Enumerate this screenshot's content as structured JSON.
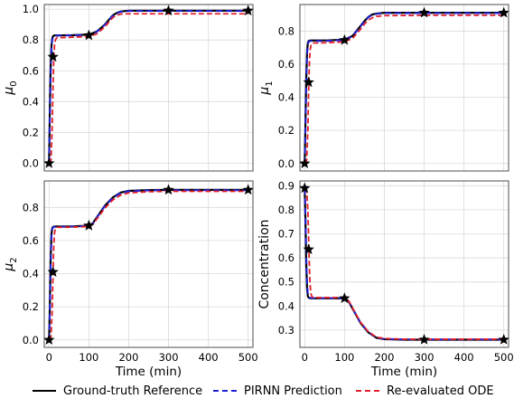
{
  "colors": {
    "ground_truth": "#000000",
    "pirnn": "#1f1fd6",
    "ode": "#e0202a",
    "grid": "#d9d9d9"
  },
  "legend": {
    "ground_truth": "Ground-truth Reference",
    "pirnn": "PIRNN Prediction",
    "ode": "Re-evaluated ODE"
  },
  "chart_data": [
    {
      "type": "line",
      "ylabel": "μ0",
      "xlabel": "",
      "xlim": [
        -12,
        512
      ],
      "ylim": [
        -0.05,
        1.03
      ],
      "yticks": [
        "0.0",
        "0.2",
        "0.4",
        "0.6",
        "0.8",
        "1.0"
      ],
      "ytick_values": [
        0.0,
        0.2,
        0.4,
        0.6,
        0.8,
        1.0
      ],
      "xticks": [
        0,
        100,
        200,
        300,
        400,
        500
      ],
      "show_xtick_labels": false,
      "grid": true,
      "series": [
        {
          "key": "ground_truth",
          "x": [
            0,
            2,
            4,
            6,
            8,
            10,
            12,
            15,
            20,
            30,
            60,
            100,
            120,
            140,
            150,
            160,
            170,
            180,
            200,
            300,
            500
          ],
          "y": [
            0.0,
            0.35,
            0.62,
            0.76,
            0.81,
            0.825,
            0.828,
            0.83,
            0.83,
            0.83,
            0.831,
            0.835,
            0.855,
            0.9,
            0.93,
            0.96,
            0.975,
            0.985,
            0.99,
            0.99,
            0.99
          ]
        },
        {
          "key": "pirnn",
          "x": [
            0,
            2,
            4,
            6,
            8,
            10,
            12,
            15,
            20,
            30,
            60,
            100,
            120,
            140,
            150,
            160,
            170,
            180,
            200,
            300,
            500
          ],
          "y": [
            0.0,
            0.3,
            0.58,
            0.74,
            0.8,
            0.82,
            0.826,
            0.828,
            0.828,
            0.829,
            0.83,
            0.834,
            0.853,
            0.898,
            0.928,
            0.958,
            0.973,
            0.983,
            0.988,
            0.988,
            0.988
          ]
        },
        {
          "key": "ode",
          "x": [
            0,
            5,
            8,
            10,
            12,
            14,
            16,
            18,
            20,
            30,
            60,
            100,
            120,
            140,
            150,
            160,
            170,
            180,
            200,
            300,
            500
          ],
          "y": [
            0.0,
            0.02,
            0.25,
            0.5,
            0.69,
            0.77,
            0.8,
            0.81,
            0.815,
            0.815,
            0.818,
            0.822,
            0.84,
            0.885,
            0.915,
            0.945,
            0.96,
            0.968,
            0.97,
            0.97,
            0.97
          ]
        }
      ],
      "markers": {
        "x": [
          0,
          10,
          100,
          300,
          500
        ],
        "y": [
          0.0,
          0.69,
          0.83,
          0.99,
          0.99
        ]
      }
    },
    {
      "type": "line",
      "ylabel": "μ1",
      "xlabel": "",
      "xlim": [
        -12,
        512
      ],
      "ylim": [
        -0.045,
        0.96
      ],
      "yticks": [
        "0.0",
        "0.2",
        "0.4",
        "0.6",
        "0.8"
      ],
      "ytick_values": [
        0.0,
        0.2,
        0.4,
        0.6,
        0.8
      ],
      "xticks": [
        0,
        100,
        200,
        300,
        400,
        500
      ],
      "show_xtick_labels": false,
      "grid": true,
      "series": [
        {
          "key": "ground_truth",
          "x": [
            0,
            2,
            4,
            6,
            8,
            10,
            12,
            15,
            20,
            30,
            60,
            100,
            120,
            140,
            150,
            160,
            170,
            180,
            200,
            300,
            500
          ],
          "y": [
            0.0,
            0.25,
            0.52,
            0.68,
            0.73,
            0.74,
            0.742,
            0.743,
            0.743,
            0.743,
            0.744,
            0.748,
            0.77,
            0.83,
            0.86,
            0.885,
            0.9,
            0.905,
            0.91,
            0.91,
            0.91
          ]
        },
        {
          "key": "pirnn",
          "x": [
            0,
            2,
            4,
            6,
            8,
            10,
            12,
            15,
            20,
            30,
            60,
            100,
            120,
            140,
            150,
            160,
            170,
            180,
            200,
            300,
            500
          ],
          "y": [
            0.0,
            0.22,
            0.49,
            0.66,
            0.72,
            0.735,
            0.738,
            0.74,
            0.74,
            0.74,
            0.741,
            0.746,
            0.768,
            0.828,
            0.858,
            0.883,
            0.898,
            0.903,
            0.908,
            0.908,
            0.908
          ]
        },
        {
          "key": "ode",
          "x": [
            0,
            5,
            8,
            10,
            12,
            14,
            16,
            18,
            20,
            30,
            60,
            100,
            120,
            140,
            150,
            160,
            170,
            180,
            200,
            300,
            500
          ],
          "y": [
            0.0,
            0.02,
            0.2,
            0.45,
            0.62,
            0.69,
            0.715,
            0.725,
            0.728,
            0.728,
            0.73,
            0.735,
            0.755,
            0.81,
            0.842,
            0.866,
            0.88,
            0.888,
            0.893,
            0.895,
            0.895
          ]
        }
      ],
      "markers": {
        "x": [
          0,
          10,
          100,
          300,
          500
        ],
        "y": [
          0.0,
          0.49,
          0.745,
          0.91,
          0.91
        ]
      }
    },
    {
      "type": "line",
      "ylabel": "μ2",
      "xlabel": "Time (min)",
      "xlim": [
        -12,
        512
      ],
      "ylim": [
        -0.045,
        0.96
      ],
      "yticks": [
        "0.0",
        "0.2",
        "0.4",
        "0.6",
        "0.8"
      ],
      "ytick_values": [
        0.0,
        0.2,
        0.4,
        0.6,
        0.8
      ],
      "xticks": [
        0,
        100,
        200,
        300,
        400,
        500
      ],
      "show_xtick_labels": true,
      "grid": true,
      "series": [
        {
          "key": "ground_truth",
          "x": [
            0,
            2,
            4,
            6,
            8,
            10,
            12,
            15,
            20,
            30,
            60,
            100,
            110,
            120,
            140,
            160,
            180,
            200,
            250,
            300,
            500
          ],
          "y": [
            0.0,
            0.2,
            0.48,
            0.64,
            0.675,
            0.682,
            0.684,
            0.685,
            0.685,
            0.685,
            0.686,
            0.69,
            0.705,
            0.74,
            0.81,
            0.86,
            0.89,
            0.9,
            0.905,
            0.906,
            0.906
          ]
        },
        {
          "key": "pirnn",
          "x": [
            0,
            2,
            4,
            6,
            8,
            10,
            12,
            15,
            20,
            30,
            60,
            100,
            110,
            120,
            140,
            160,
            180,
            200,
            250,
            300,
            500
          ],
          "y": [
            0.0,
            0.18,
            0.45,
            0.62,
            0.67,
            0.68,
            0.682,
            0.683,
            0.683,
            0.683,
            0.684,
            0.688,
            0.703,
            0.738,
            0.808,
            0.858,
            0.888,
            0.898,
            0.903,
            0.904,
            0.904
          ]
        },
        {
          "key": "ode",
          "x": [
            0,
            5,
            8,
            10,
            12,
            14,
            16,
            18,
            20,
            30,
            60,
            100,
            110,
            120,
            140,
            160,
            180,
            200,
            250,
            300,
            500
          ],
          "y": [
            0.0,
            0.02,
            0.18,
            0.4,
            0.58,
            0.65,
            0.672,
            0.678,
            0.68,
            0.68,
            0.681,
            0.685,
            0.698,
            0.73,
            0.795,
            0.845,
            0.875,
            0.888,
            0.895,
            0.897,
            0.897
          ]
        }
      ],
      "markers": {
        "x": [
          0,
          10,
          100,
          300,
          500
        ],
        "y": [
          0.0,
          0.41,
          0.69,
          0.906,
          0.906
        ]
      }
    },
    {
      "type": "line",
      "ylabel": "Concentration",
      "xlabel": "Time (min)",
      "xlim": [
        -12,
        512
      ],
      "ylim": [
        0.228,
        0.92
      ],
      "yticks": [
        "0.3",
        "0.4",
        "0.5",
        "0.6",
        "0.7",
        "0.8",
        "0.9"
      ],
      "ytick_values": [
        0.3,
        0.4,
        0.5,
        0.6,
        0.7,
        0.8,
        0.9
      ],
      "xticks": [
        0,
        100,
        200,
        300,
        400,
        500
      ],
      "show_xtick_labels": true,
      "grid": true,
      "series": [
        {
          "key": "ground_truth",
          "x": [
            0,
            2,
            4,
            6,
            8,
            10,
            12,
            15,
            20,
            30,
            60,
            100,
            110,
            120,
            140,
            160,
            180,
            200,
            250,
            300,
            500
          ],
          "y": [
            0.89,
            0.75,
            0.57,
            0.47,
            0.44,
            0.435,
            0.433,
            0.432,
            0.432,
            0.432,
            0.432,
            0.432,
            0.42,
            0.39,
            0.33,
            0.29,
            0.268,
            0.262,
            0.26,
            0.26,
            0.26
          ]
        },
        {
          "key": "pirnn",
          "x": [
            0,
            2,
            4,
            6,
            8,
            10,
            12,
            15,
            20,
            30,
            60,
            100,
            110,
            120,
            140,
            160,
            180,
            200,
            250,
            300,
            500
          ],
          "y": [
            0.89,
            0.77,
            0.6,
            0.49,
            0.45,
            0.438,
            0.435,
            0.433,
            0.433,
            0.433,
            0.433,
            0.433,
            0.421,
            0.391,
            0.331,
            0.291,
            0.269,
            0.263,
            0.261,
            0.261,
            0.261
          ]
        },
        {
          "key": "ode",
          "x": [
            0,
            5,
            8,
            10,
            12,
            14,
            16,
            18,
            20,
            30,
            60,
            100,
            110,
            120,
            140,
            160,
            180,
            200,
            250,
            300,
            500
          ],
          "y": [
            0.89,
            0.88,
            0.8,
            0.68,
            0.55,
            0.48,
            0.45,
            0.44,
            0.436,
            0.435,
            0.435,
            0.435,
            0.423,
            0.393,
            0.333,
            0.293,
            0.271,
            0.265,
            0.262,
            0.262,
            0.262
          ]
        }
      ],
      "markers": {
        "x": [
          0,
          10,
          100,
          300,
          500
        ],
        "y": [
          0.89,
          0.635,
          0.432,
          0.26,
          0.26
        ]
      }
    }
  ]
}
